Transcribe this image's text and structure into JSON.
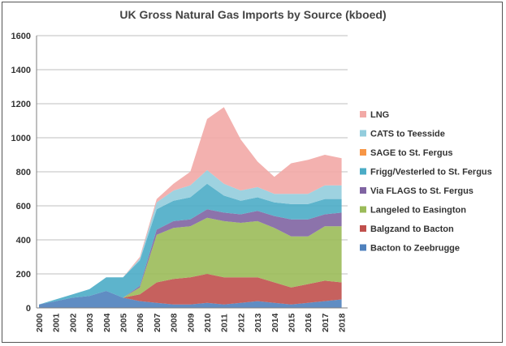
{
  "chart_data": {
    "type": "area",
    "title": "UK Gross Natural Gas Imports by Source (kboed)",
    "xlabel": "",
    "ylabel": "",
    "ylim": [
      0,
      1600
    ],
    "y_ticks": [
      0,
      200,
      400,
      600,
      800,
      1000,
      1200,
      1400,
      1600
    ],
    "x_ticks": [
      "2000",
      "2001",
      "2002",
      "2003",
      "2004",
      "2005",
      "2006",
      "2007",
      "2008",
      "2009",
      "2010",
      "2011",
      "2012",
      "2013",
      "2014",
      "2015",
      "2016",
      "2017",
      "2018"
    ],
    "grid": true,
    "legend_position": "right",
    "stacked": true,
    "x": [
      "2000",
      "2001",
      "2002",
      "2003",
      "2004",
      "2005",
      "2006",
      "2007",
      "2008",
      "2009",
      "2010",
      "2011",
      "2012",
      "2013",
      "2014",
      "2015",
      "2016",
      "2017",
      "2018"
    ],
    "series": [
      {
        "name": "Bacton to Zeebrugge",
        "color": "#4f81bd",
        "values": [
          20,
          40,
          60,
          70,
          100,
          60,
          40,
          30,
          20,
          20,
          30,
          20,
          30,
          40,
          30,
          20,
          30,
          40,
          50
        ]
      },
      {
        "name": "Balgzand to Bacton",
        "color": "#c0504d",
        "values": [
          0,
          0,
          0,
          0,
          0,
          0,
          40,
          120,
          150,
          160,
          170,
          160,
          150,
          140,
          120,
          100,
          110,
          120,
          100
        ]
      },
      {
        "name": "Langeled to Easington",
        "color": "#9bbb59",
        "values": [
          0,
          0,
          0,
          0,
          0,
          0,
          40,
          280,
          300,
          300,
          330,
          330,
          320,
          330,
          320,
          300,
          280,
          320,
          330
        ]
      },
      {
        "name": "Via FLAGS to St. Fergus",
        "color": "#8064a2",
        "values": [
          0,
          0,
          0,
          0,
          0,
          0,
          10,
          30,
          40,
          40,
          50,
          50,
          50,
          60,
          70,
          100,
          100,
          70,
          80
        ]
      },
      {
        "name": "Frigg/Vesterled to St. Fergus",
        "color": "#4bacc6",
        "values": [
          0,
          10,
          20,
          40,
          80,
          120,
          150,
          120,
          120,
          130,
          150,
          100,
          80,
          80,
          80,
          90,
          90,
          90,
          80
        ]
      },
      {
        "name": "SAGE to St. Fergus",
        "color": "#f79646",
        "values": [
          0,
          0,
          0,
          0,
          0,
          0,
          0,
          0,
          0,
          0,
          0,
          0,
          0,
          0,
          0,
          0,
          0,
          0,
          0
        ]
      },
      {
        "name": "CATS to Teesside",
        "color": "#93cddd",
        "values": [
          0,
          0,
          0,
          0,
          0,
          0,
          10,
          40,
          60,
          70,
          80,
          70,
          60,
          60,
          50,
          60,
          60,
          80,
          80
        ]
      },
      {
        "name": "LNG",
        "color": "#f2a9a6",
        "values": [
          0,
          0,
          0,
          0,
          0,
          0,
          10,
          20,
          40,
          80,
          300,
          450,
          300,
          150,
          100,
          180,
          200,
          180,
          160
        ]
      }
    ],
    "legend_order": [
      "LNG",
      "CATS to Teesside",
      "SAGE to St. Fergus",
      "Frigg/Vesterled to St. Fergus",
      "Via FLAGS to St. Fergus",
      "Langeled to Easington",
      "Balgzand to Bacton",
      "Bacton to Zeebrugge"
    ]
  }
}
